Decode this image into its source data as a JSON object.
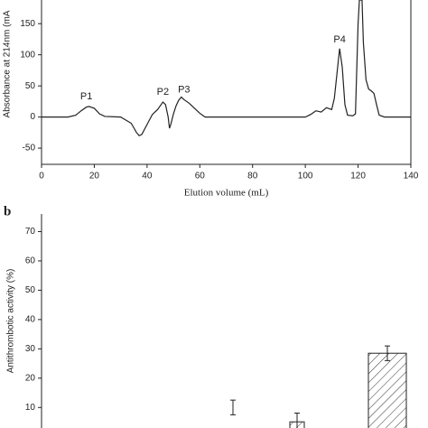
{
  "charts": [
    {
      "chart_data": {
        "type": "line",
        "y_label": "Absorbance at 214nm (mA",
        "x_label": "Elution volume (mL)",
        "xlim": [
          0,
          140
        ],
        "xticks": [
          0,
          20,
          40,
          60,
          80,
          100,
          120,
          140
        ],
        "ylim": [
          -76,
          188
        ],
        "yticks": [
          -50,
          0,
          50,
          100,
          150
        ],
        "annotations": [
          "P1",
          "P2",
          "P3",
          "P4"
        ],
        "series": [
          {
            "name": null,
            "color": "#222222",
            "x": [
              0,
              10,
              13,
              15,
              17,
              18,
              20,
              22,
              24,
              30,
              34,
              36,
              37,
              38,
              40,
              42,
              44,
              45,
              46,
              47,
              48,
              48.5,
              49,
              50,
              51,
              52,
              53,
              54,
              56,
              58,
              60,
              62,
              70,
              80,
              90,
              100,
              102,
              104,
              106,
              108,
              110,
              111,
              112,
              113,
              114,
              115,
              116,
              118,
              119,
              120,
              120.5,
              121,
              121.5,
              122,
              123,
              124,
              125,
              126,
              127,
              128,
              130,
              140
            ],
            "y": [
              0,
              0,
              3,
              10,
              16,
              17,
              14,
              5,
              1,
              0,
              -10,
              -25,
              -30,
              -28,
              -12,
              4,
              12,
              18,
              24,
              20,
              0,
              -18,
              -12,
              5,
              18,
              27,
              32,
              28,
              22,
              14,
              6,
              0,
              0,
              0,
              0,
              0,
              4,
              10,
              8,
              15,
              12,
              30,
              70,
              110,
              80,
              20,
              3,
              2,
              5,
              150,
              188,
              188,
              188,
              120,
              60,
              45,
              42,
              38,
              20,
              3,
              0,
              0
            ]
          }
        ]
      }
    },
    {
      "chart_data": {
        "type": "bar",
        "panel_label": "b",
        "y_label": "Antithrombotic activity (%)",
        "categories": [
          null,
          null,
          null
        ],
        "ylim": [
          3,
          76
        ],
        "yticks": [
          10,
          20,
          30,
          40,
          50,
          60,
          70
        ],
        "series": [
          {
            "name": null,
            "color": "#222222",
            "values": [
              10,
              5.1,
              28.5
            ],
            "errors": [
              2.5,
              3,
              2.5
            ]
          }
        ]
      }
    }
  ]
}
